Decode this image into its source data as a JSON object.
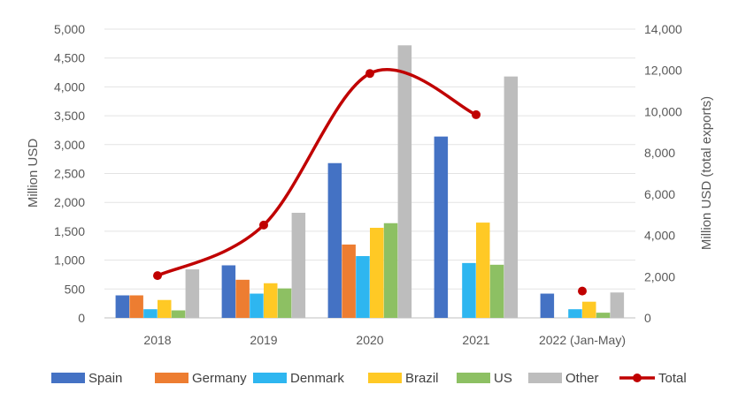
{
  "chart_data": {
    "type": "bar",
    "categories": [
      "2018",
      "2019",
      "2020",
      "2021",
      "2022 (Jan-May)"
    ],
    "series": [
      {
        "name": "Spain",
        "color": "#4472C4",
        "values": [
          390,
          910,
          2680,
          3140,
          420
        ]
      },
      {
        "name": "Germany",
        "color": "#ED7D31",
        "values": [
          390,
          660,
          1270,
          null,
          null
        ]
      },
      {
        "name": "Denmark",
        "color": "#2EB6F0",
        "values": [
          150,
          420,
          1070,
          950,
          150
        ]
      },
      {
        "name": "Brazil",
        "color": "#FFC925",
        "values": [
          310,
          600,
          1560,
          1650,
          280
        ]
      },
      {
        "name": "US",
        "color": "#8DC063",
        "values": [
          130,
          510,
          1640,
          920,
          90
        ]
      },
      {
        "name": "Other",
        "color": "#BDBDBD",
        "values": [
          840,
          1820,
          4720,
          4180,
          440
        ]
      }
    ],
    "line_series": {
      "name": "Total",
      "color": "#C00000",
      "axis": "right",
      "values": [
        2050,
        4500,
        11850,
        9850,
        1300
      ]
    },
    "ylabel": "Million USD",
    "y2label": "Million USD (total exports)",
    "ylim": [
      0,
      5000
    ],
    "y2lim": [
      0,
      14000
    ],
    "yticks": [
      "0",
      "500",
      "1,000",
      "1,500",
      "2,000",
      "2,500",
      "3,000",
      "3,500",
      "4,000",
      "4,500",
      "5,000"
    ],
    "y2ticks": [
      "0",
      "2,000",
      "4,000",
      "6,000",
      "8,000",
      "10,000",
      "12,000",
      "14,000"
    ],
    "grid": true,
    "legend_position": "bottom"
  }
}
